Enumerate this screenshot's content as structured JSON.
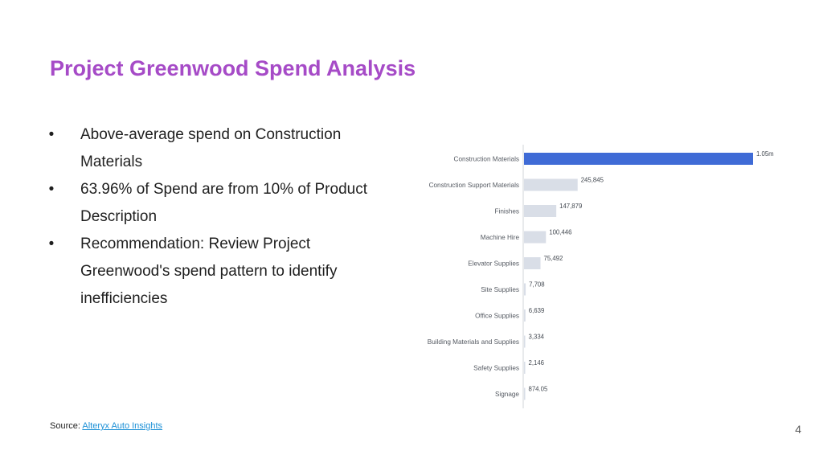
{
  "slide": {
    "title": "Project Greenwood Spend Analysis",
    "bullets": [
      {
        "marker": "•",
        "text": "Above-average spend on Construction Materials"
      },
      {
        "marker": "•",
        "text": "63.96% of Spend are from 10% of Product Description"
      },
      {
        "marker": "•",
        "text": "Recommendation: Review Project Greenwood's spend pattern to identify inefficiencies"
      }
    ],
    "source_label": "Source:",
    "source_link": "Alteryx Auto Insights",
    "page_number": "4"
  },
  "colors": {
    "title": "#a64bc7",
    "highlight_bar": "#3f6bd6",
    "other_bar": "#d9dee7",
    "axis": "#d0d4da",
    "link": "#1a8fd6"
  },
  "chart_data": {
    "type": "bar",
    "orientation": "horizontal",
    "categories": [
      "Construction Materials",
      "Construction Support Materials",
      "Finishes",
      "Machine Hire",
      "Elevator Supplies",
      "Site Supplies",
      "Office Supplies",
      "Building Materials and Supplies",
      "Safety Supplies",
      "Signage"
    ],
    "values": [
      1050000,
      245845,
      147879,
      100446,
      75492,
      7708,
      6639,
      3334,
      2146,
      874.05
    ],
    "value_labels": [
      "1.05m",
      "245,845",
      "147,879",
      "100,446",
      "75,492",
      "7,708",
      "6,639",
      "3,334",
      "2,146",
      "874.05"
    ],
    "highlight_index": 0,
    "xlim": [
      0,
      1050000
    ],
    "grid": false,
    "legend": "none"
  }
}
